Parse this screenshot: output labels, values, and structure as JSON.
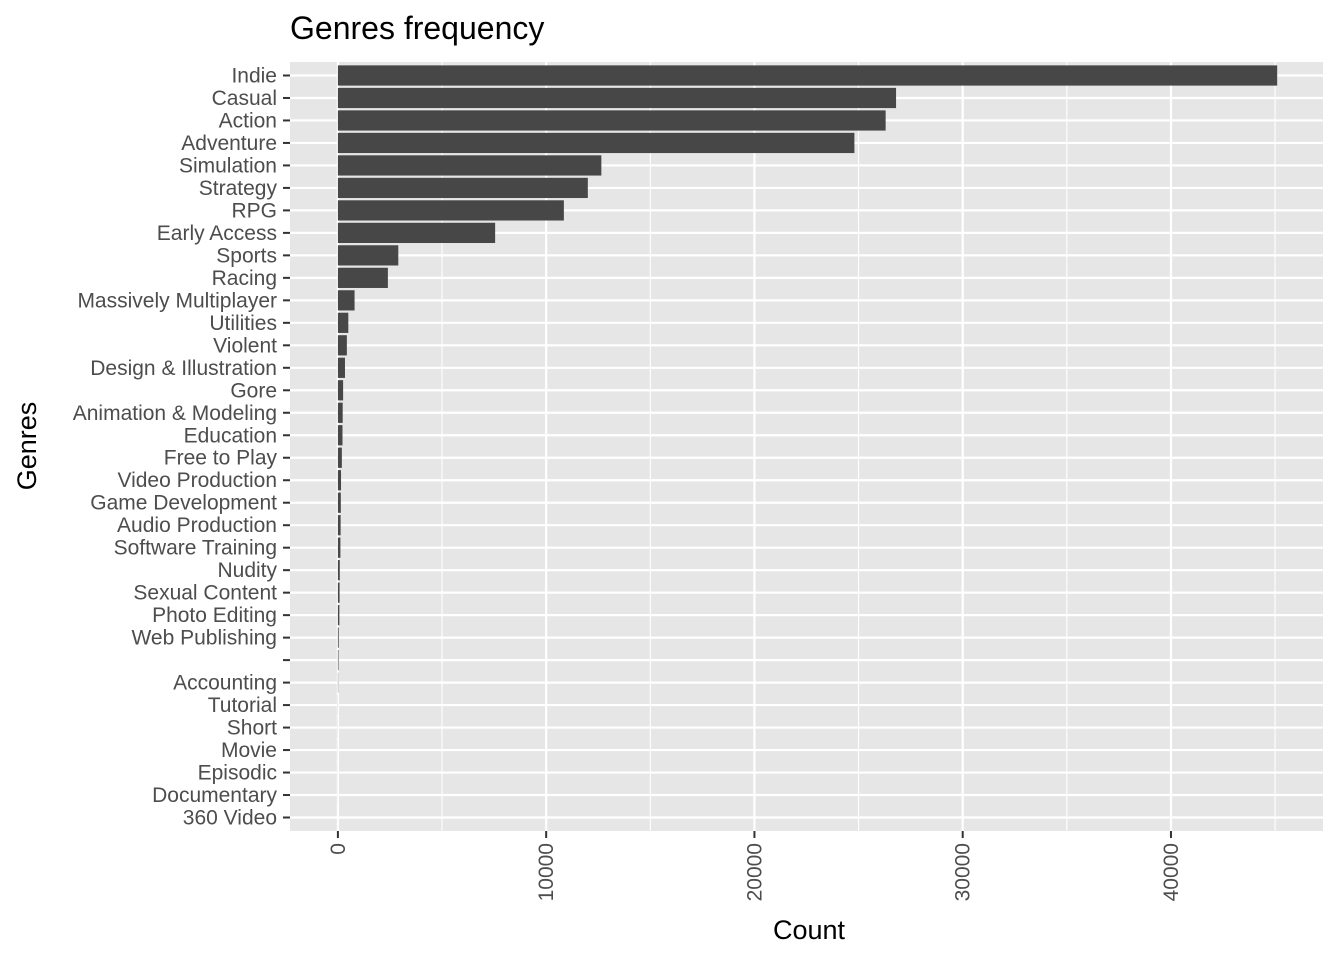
{
  "chart_data": {
    "type": "bar",
    "orientation": "horizontal",
    "title": "Genres frequency",
    "xlabel": "Count",
    "ylabel": "Genres",
    "xlim": [
      -2300,
      47300
    ],
    "xticks": [
      0,
      10000,
      20000,
      30000,
      40000
    ],
    "xtick_labels": [
      "0",
      "10000",
      "20000",
      "30000",
      "40000"
    ],
    "grid": true,
    "legend": "none",
    "colors": {
      "bar": "#474747",
      "panel": "#e6e6e6",
      "grid": "#ffffff",
      "tick_text": "#4d4d4d",
      "tick_mark": "#333333"
    },
    "categories": [
      "Indie",
      "Casual",
      "Action",
      "Adventure",
      "Simulation",
      "Strategy",
      "RPG",
      "Early Access",
      "Sports",
      "Racing",
      "Massively Multiplayer",
      "Utilities",
      "Violent",
      "Design & Illustration",
      "Gore",
      "Animation & Modeling",
      "Education",
      "Free to Play",
      "Video Production",
      "Game Development",
      "Audio Production",
      "Software Training",
      "Nudity",
      "Sexual Content",
      "Photo Editing",
      "Web Publishing",
      "",
      "Accounting",
      "Tutorial",
      "Short",
      "Movie",
      "Episodic",
      "Documentary",
      "360 Video"
    ],
    "values": [
      45100,
      26800,
      26300,
      24800,
      12650,
      12000,
      10850,
      7550,
      2900,
      2400,
      800,
      500,
      430,
      340,
      250,
      230,
      220,
      190,
      150,
      140,
      130,
      120,
      90,
      80,
      70,
      40,
      30,
      15,
      5,
      4,
      3,
      2,
      2,
      1
    ]
  }
}
